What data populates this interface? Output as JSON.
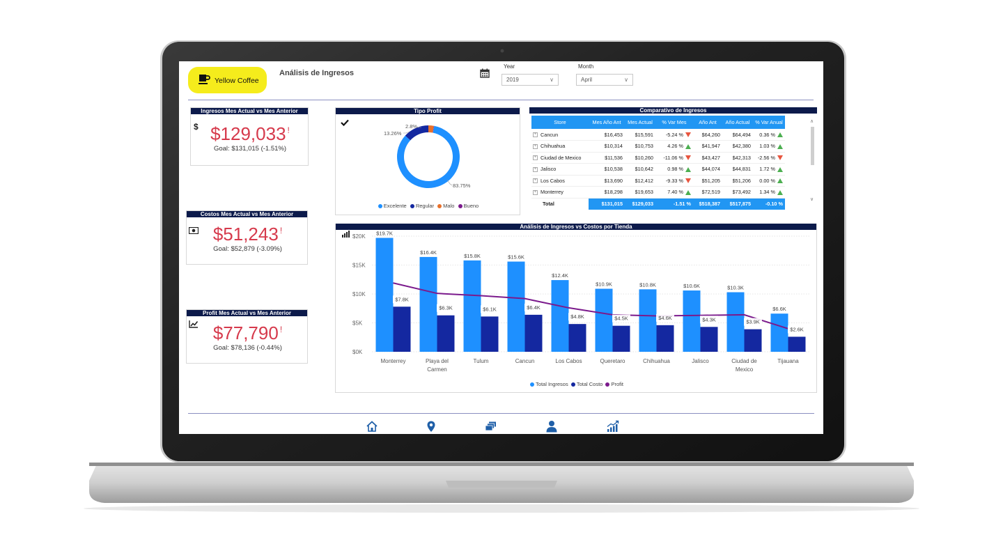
{
  "brand": {
    "name": "Yellow Coffee",
    "icon": "coffee-cup-icon",
    "color": "#f5ec1c"
  },
  "page_title": "Análisis de Ingresos",
  "filters": {
    "calendar_icon": "calendar-icon",
    "year": {
      "label": "Year",
      "value": "2019"
    },
    "month": {
      "label": "Month",
      "value": "April"
    }
  },
  "kpis": [
    {
      "title": "Ingresos Mes Actual vs Mes Anterior",
      "icon": "dollar-icon",
      "value": "$129,033",
      "alert": "!",
      "goal": "Goal: $131,015 (-1.51%)"
    },
    {
      "title": "Costos Mes Actual vs Mes Anterior",
      "icon": "money-bill-icon",
      "value": "$51,243",
      "alert": "!",
      "goal": "Goal: $52,879 (-3.09%)"
    },
    {
      "title": "Profit Mes Actual vs Mes Anterior",
      "icon": "trend-icon",
      "value": "$77,790",
      "alert": "!",
      "goal": "Goal: $78,136 (-0.44%)"
    }
  ],
  "colors": {
    "header": "#0c1a4b",
    "ingresos": "#1e90ff",
    "costo": "#1428a0",
    "profit": "#7b1a8c",
    "kpi": "#d63a4c",
    "up": "#4caf50",
    "down": "#e8553e"
  },
  "tipo_profit": {
    "title": "Tipo Profit",
    "check_icon": "checkmark-icon",
    "labels": [
      "2.8%",
      "13.26%",
      "83.75%"
    ]
  },
  "comparativo": {
    "title": "Comparativo de Ingresos",
    "columns": [
      "Store",
      "Mes Año Ant",
      "Mes Actual",
      "% Var Mes",
      "Año Ant",
      "Año Actual",
      "% Var Anual"
    ],
    "rows": [
      {
        "store": "Cancun",
        "mes_ant": "$16,453",
        "mes_act": "$15,591",
        "var_mes": "-5.24 %",
        "mes_dir": "down",
        "ano_ant": "$64,260",
        "ano_act": "$64,494",
        "var_ano": "0.36 %",
        "ano_dir": "up"
      },
      {
        "store": "Chihuahua",
        "mes_ant": "$10,314",
        "mes_act": "$10,753",
        "var_mes": "4.26 %",
        "mes_dir": "up",
        "ano_ant": "$41,947",
        "ano_act": "$42,380",
        "var_ano": "1.03 %",
        "ano_dir": "up"
      },
      {
        "store": "Ciudad de Mexico",
        "mes_ant": "$11,536",
        "mes_act": "$10,260",
        "var_mes": "-11.06 %",
        "mes_dir": "down",
        "ano_ant": "$43,427",
        "ano_act": "$42,313",
        "var_ano": "-2.56 %",
        "ano_dir": "down"
      },
      {
        "store": "Jalisco",
        "mes_ant": "$10,538",
        "mes_act": "$10,642",
        "var_mes": "0.98 %",
        "mes_dir": "up",
        "ano_ant": "$44,074",
        "ano_act": "$44,831",
        "var_ano": "1.72 %",
        "ano_dir": "up"
      },
      {
        "store": "Los Cabos",
        "mes_ant": "$13,690",
        "mes_act": "$12,412",
        "var_mes": "-9.33 %",
        "mes_dir": "down",
        "ano_ant": "$51,205",
        "ano_act": "$51,206",
        "var_ano": "0.00 %",
        "ano_dir": "up"
      },
      {
        "store": "Monterrey",
        "mes_ant": "$18,298",
        "mes_act": "$19,653",
        "var_mes": "7.40 %",
        "mes_dir": "up",
        "ano_ant": "$72,519",
        "ano_act": "$73,492",
        "var_ano": "1.34 %",
        "ano_dir": "up"
      }
    ],
    "total": {
      "store": "Total",
      "mes_ant": "$131,015",
      "mes_act": "$129,033",
      "var_mes": "-1.51 %",
      "ano_ant": "$518,387",
      "ano_act": "$517,875",
      "var_ano": "-0.10 %"
    }
  },
  "bar_chart": {
    "title": "Análisis de Ingresos vs Costos por Tienda",
    "ytick_labels": [
      "$0K",
      "$5K",
      "$10K",
      "$15K",
      "$20K"
    ],
    "legend": [
      "Total Ingresos",
      "Total Costo",
      "Profit"
    ]
  },
  "chart_data": [
    {
      "type": "pie",
      "title": "Tipo Profit",
      "categories": [
        "Excelente",
        "Regular",
        "Malo",
        "Bueno"
      ],
      "values": [
        83.75,
        13.26,
        2.8,
        0.19
      ],
      "colors": [
        "#1e90ff",
        "#1428a0",
        "#e8702a",
        "#7b1a8c"
      ],
      "legend": "bottom"
    },
    {
      "type": "bar",
      "title": "Análisis de Ingresos vs Costos por Tienda",
      "categories": [
        "Monterrey",
        "Playa del Carmen",
        "Tulum",
        "Cancun",
        "Los Cabos",
        "Queretaro",
        "Chihuahua",
        "Jalisco",
        "Ciudad de Mexico",
        "Tijauana"
      ],
      "series": [
        {
          "name": "Total Ingresos",
          "type": "bar",
          "values": [
            19.7,
            16.4,
            15.8,
            15.6,
            12.4,
            10.9,
            10.8,
            10.6,
            10.3,
            6.6
          ],
          "labels": [
            "$19.7K",
            "$16.4K",
            "$15.8K",
            "$15.6K",
            "$12.4K",
            "$10.9K",
            "$10.8K",
            "$10.6K",
            "$10.3K",
            "$6.6K"
          ]
        },
        {
          "name": "Total Costo",
          "type": "bar",
          "values": [
            7.8,
            6.3,
            6.1,
            6.4,
            4.8,
            4.5,
            4.6,
            4.3,
            3.9,
            2.6
          ],
          "labels": [
            "$7.8K",
            "$6.3K",
            "$6.1K",
            "$6.4K",
            "$4.8K",
            "$4.5K",
            "$4.6K",
            "$4.3K",
            "$3.9K",
            "$2.6K"
          ]
        },
        {
          "name": "Profit",
          "type": "line",
          "values": [
            11.9,
            10.1,
            9.7,
            9.2,
            7.6,
            6.4,
            6.2,
            6.3,
            6.4,
            4.0
          ]
        }
      ],
      "ylim": [
        0,
        20
      ],
      "grid": true,
      "legend": "bottom"
    }
  ],
  "nav": [
    "home-icon",
    "location-pin-icon",
    "cards-icon",
    "user-icon",
    "growth-chart-icon"
  ]
}
